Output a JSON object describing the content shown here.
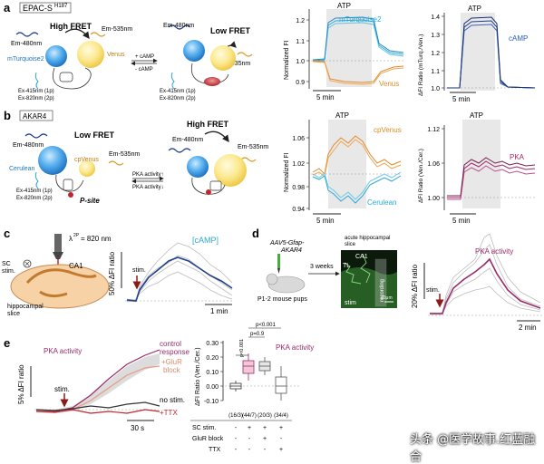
{
  "colors": {
    "cyan": "#2aa9d6",
    "orange": "#e08a2a",
    "navy": "#1f3f8f",
    "magenta": "#9b2a6b",
    "gray": "#9a9a9a",
    "shade": "#e6e6e6",
    "red": "#a3122a",
    "green": "#49a947"
  },
  "panel_a": {
    "letter": "a",
    "sensor": "EPAC-S",
    "sensor_sup": "H187",
    "em480": "Em-480nm",
    "em535": "Em-535nm",
    "high_fret": "High FRET",
    "low_fret": "Low FRET",
    "donor": "mTurquoise2",
    "acceptor": "Venus",
    "plus": "+ cAMP",
    "minus": "- cAMP",
    "ex1p": "Ex-415nm (1p)",
    "ex2p": "Ex-820nm (2p)",
    "trace1": {
      "title": "ATP",
      "ylabel": "Normalized FI",
      "ticks": [
        "1.2",
        "1.1",
        "1.0",
        "0.9"
      ],
      "scale": "5 min",
      "series": [
        "mTurquoise2",
        "Venus"
      ]
    },
    "trace2": {
      "title": "ATP",
      "ylabel": "ΔFI Ratio (mTurq./Ven.)",
      "ticks": [
        "1.4",
        "1.3",
        "1.2",
        "1.1",
        "1.0"
      ],
      "scale": "5 min",
      "series": [
        "cAMP"
      ]
    }
  },
  "panel_b": {
    "letter": "b",
    "sensor": "AKAR4",
    "low_fret": "Low FRET",
    "high_fret": "High FRET",
    "em480": "Em-480nm",
    "em535": "Em-535nm",
    "donor": "Cerulean",
    "acceptor": "cpVenus",
    "pka_up": "PKA activity↑",
    "pka_down": "PKA activity↓",
    "psite": "P-site",
    "ex1p": "Ex-415nm (1p)",
    "ex2p": "Ex-820nm (2p)",
    "trace1": {
      "title": "ATP",
      "ylabel": "Normalized FI",
      "ticks": [
        "1.06",
        "1.02",
        "0.98",
        "0.94"
      ],
      "scale": "5 min",
      "series": [
        "cpVenus",
        "Cerulean"
      ]
    },
    "trace2": {
      "title": "ATP",
      "ylabel": "ΔFI Ratio (Ven./Cer.)",
      "ticks": [
        "1.12",
        "1.06",
        "1.00"
      ],
      "scale": "5 min",
      "series": [
        "PKA"
      ]
    }
  },
  "panel_c": {
    "letter": "c",
    "lambda": "λ",
    "lambda_sup": "2P",
    "lambda_val": "= 820 nm",
    "sc_stim": "SC",
    "sc_stim2": "stim.",
    "ca1": "CA1",
    "slice1": "hippocampal",
    "slice2": "slice",
    "ylabel": "50% ΔFI ratio",
    "stim": "stim.",
    "series": "[cAMP]",
    "scale": "1 min"
  },
  "panel_d": {
    "letter": "d",
    "virus1": "AAV5-Gfap-",
    "virus2": "AKAR4",
    "weeks": "3 weeks",
    "pups": "P1-2 mouse pups",
    "acute1": "acute hippocampal",
    "acute2": "slice",
    "ca1": "CA1",
    "tl": "TL",
    "stim": "stim",
    "recording": "recording",
    "scale_img": "20μm",
    "ylabel": "20% ΔFI ratio",
    "stim_arrow": "stim.",
    "series": "PKA activity",
    "scale": "2 min"
  },
  "panel_e": {
    "letter": "e",
    "ylabel": "5% ΔFI ratio",
    "title": "PKA activity",
    "stim": "stim.",
    "control1": "control",
    "control2": "response",
    "glur1": "+GluR",
    "glur2": "block",
    "nostim": "no stim.",
    "ttx": "+TTX",
    "scale": "30 s",
    "box_ylabel": "ΔFI Ratio (Ven./Cer.)",
    "box_title": "PKA activity",
    "yticks": [
      "0.30",
      "0.20",
      "0.10",
      "0.00",
      "-0.10"
    ],
    "p1": "p<0.001",
    "p2": "p=0.9",
    "p3": "p<0.001",
    "groups": [
      "(16/3)",
      "(44/7)",
      "(20/3)",
      "(34/4)"
    ],
    "rows": [
      {
        "label": "SC stim.",
        "marks": [
          "-",
          "+",
          "+",
          "+"
        ]
      },
      {
        "label": "GluR block",
        "marks": [
          "-",
          "-",
          "+",
          "-"
        ]
      },
      {
        "label": "TTX",
        "marks": [
          "-",
          "-",
          "-",
          "+"
        ]
      }
    ]
  },
  "watermark": "头条 @医学故事.红蓝融合"
}
